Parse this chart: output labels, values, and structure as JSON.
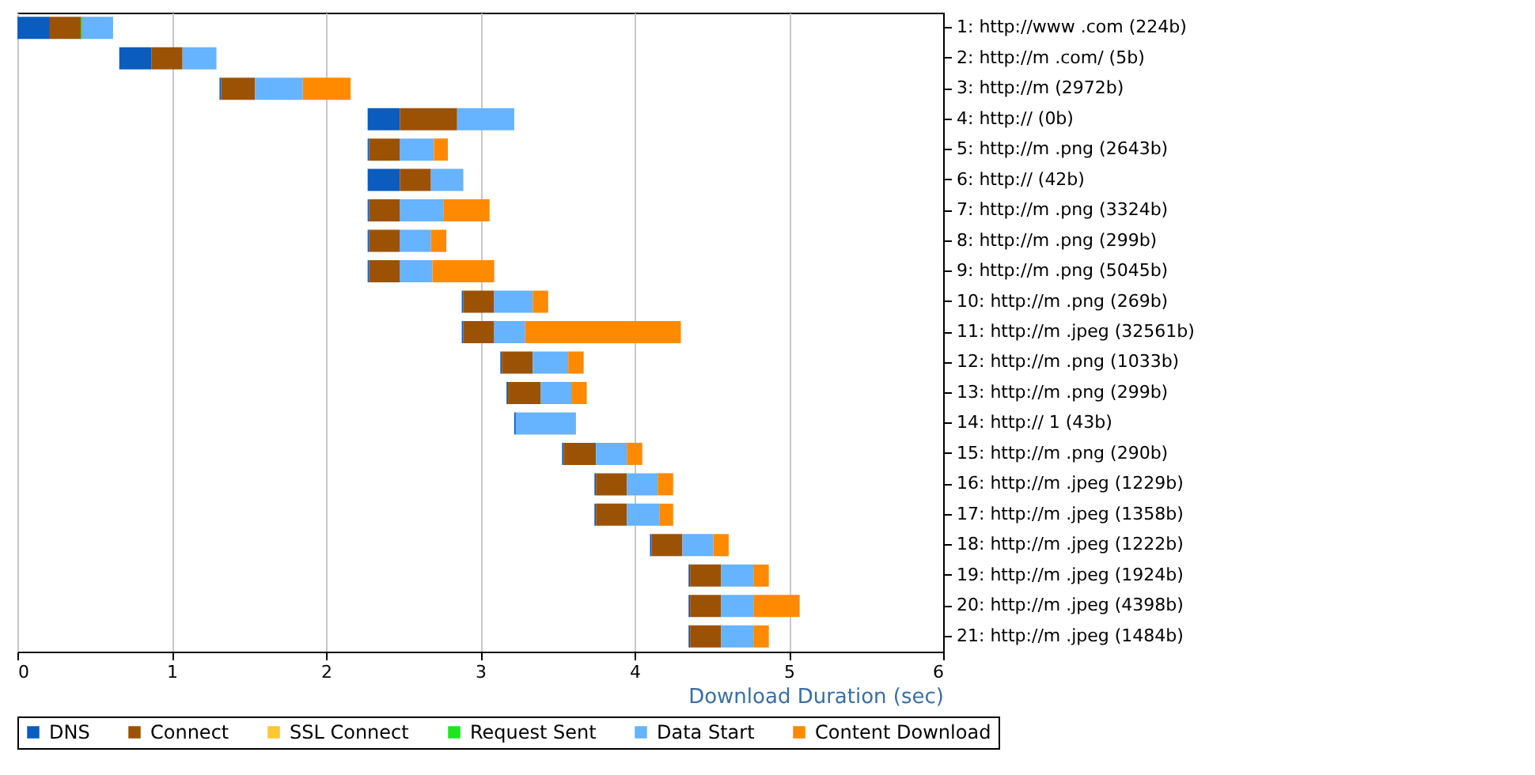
{
  "chart_data": {
    "type": "bar",
    "orientation": "horizontal",
    "xlabel": "Download Duration (sec)",
    "categories": [
      "1: http://www .com (224b)",
      "2: http://m .com/ (5b)",
      "3: http://m (2972b)",
      "4: http:// (0b)",
      "5: http://m .png (2643b)",
      "6: http:// (42b)",
      "7: http://m .png (3324b)",
      "8: http://m .png (299b)",
      "9: http://m .png (5045b)",
      "10: http://m .png (269b)",
      "11: http://m .jpeg (32561b)",
      "12: http://m .png (1033b)",
      "13: http://m .png (299b)",
      "14: http:// 1 (43b)",
      "15: http://m .png (290b)",
      "16: http://m .jpeg (1229b)",
      "17: http://m .jpeg (1358b)",
      "18: http://m .jpeg (1222b)",
      "19: http://m .jpeg (1924b)",
      "20: http://m .jpeg (4398b)",
      "21: http://m .jpeg (1484b)"
    ],
    "series": [
      {
        "name": "DNS",
        "color": "#0a5cbf",
        "base": [
          0,
          0.66,
          1.31,
          2.27,
          2.27,
          2.27,
          2.27,
          2.27,
          2.27,
          2.88,
          2.88,
          3.13,
          3.17,
          3.22,
          3.53,
          3.74,
          3.74,
          4.1,
          4.35,
          4.35,
          4.35
        ],
        "values": [
          0.21,
          0.21,
          0.01,
          0.21,
          0.01,
          0.21,
          0.01,
          0.01,
          0.01,
          0.01,
          0.01,
          0.01,
          0.01,
          0.01,
          0.01,
          0.01,
          0.01,
          0.01,
          0.01,
          0.01,
          0.01
        ]
      },
      {
        "name": "Connect",
        "color": "#9c5204",
        "base": [
          0.21,
          0.87,
          1.32,
          2.48,
          2.28,
          2.48,
          2.28,
          2.28,
          2.28,
          2.89,
          2.89,
          3.14,
          3.18,
          null,
          3.54,
          3.75,
          3.75,
          4.11,
          4.36,
          4.36,
          4.36
        ],
        "values": [
          0.2,
          0.2,
          0.22,
          0.37,
          0.2,
          0.2,
          0.2,
          0.2,
          0.2,
          0.2,
          0.2,
          0.2,
          0.21,
          null,
          0.21,
          0.2,
          0.2,
          0.2,
          0.2,
          0.2,
          0.2
        ]
      },
      {
        "name": "SSL Connect",
        "color": "#ffc830",
        "base": [
          null,
          null,
          null,
          null,
          null,
          null,
          null,
          null,
          null,
          null,
          null,
          null,
          null,
          null,
          null,
          null,
          null,
          null,
          null,
          null,
          null
        ],
        "values": [
          null,
          null,
          null,
          null,
          null,
          null,
          null,
          null,
          null,
          null,
          null,
          null,
          null,
          null,
          null,
          null,
          null,
          null,
          null,
          null,
          null
        ]
      },
      {
        "name": "Request Sent",
        "color": "#1ee61e",
        "base": [
          0.41,
          null,
          null,
          null,
          null,
          null,
          null,
          null,
          null,
          null,
          null,
          null,
          null,
          null,
          null,
          null,
          null,
          null,
          null,
          null,
          null
        ],
        "values": [
          0.01,
          null,
          null,
          null,
          null,
          null,
          null,
          null,
          null,
          null,
          null,
          null,
          null,
          null,
          null,
          null,
          null,
          null,
          null,
          null,
          null
        ]
      },
      {
        "name": "Data Start",
        "color": "#66b3ff",
        "base": [
          0.42,
          1.07,
          1.54,
          2.85,
          2.48,
          2.68,
          2.48,
          2.48,
          2.48,
          3.09,
          3.09,
          3.34,
          3.39,
          3.23,
          3.75,
          3.95,
          3.95,
          4.31,
          4.56,
          4.56,
          4.56
        ],
        "values": [
          0.2,
          0.22,
          0.31,
          0.37,
          0.22,
          0.21,
          0.28,
          0.2,
          0.21,
          0.25,
          0.2,
          0.23,
          0.2,
          0.39,
          0.2,
          0.2,
          0.21,
          0.2,
          0.21,
          0.21,
          0.21
        ]
      },
      {
        "name": "Content Download",
        "color": "#ff8a00",
        "base": [
          null,
          null,
          1.85,
          null,
          2.7,
          null,
          2.76,
          2.68,
          2.69,
          3.34,
          3.29,
          3.57,
          3.59,
          null,
          3.95,
          4.15,
          4.16,
          4.51,
          4.77,
          4.77,
          4.77
        ],
        "values": [
          null,
          null,
          0.31,
          null,
          0.09,
          null,
          0.3,
          0.1,
          0.4,
          0.1,
          1.01,
          0.1,
          0.1,
          null,
          0.1,
          0.1,
          0.09,
          0.1,
          0.1,
          0.3,
          0.1
        ]
      }
    ],
    "xlim": [
      0,
      6
    ],
    "xticks": [
      0,
      1,
      2,
      3,
      4,
      5,
      6
    ],
    "grid": "x",
    "legend": "bottom"
  }
}
